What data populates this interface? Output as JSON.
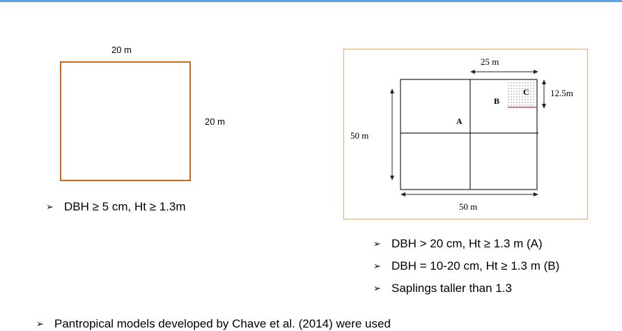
{
  "left_diagram": {
    "top_label": "20 m",
    "side_label": "20 m",
    "bullet": "DBH ≥ 5 cm, Ht ≥ 1.3m"
  },
  "right_diagram": {
    "top_label": "25 m",
    "right_label": "12.5m",
    "left_label": "50 m",
    "bottom_label": "50 m",
    "zone_a": "A",
    "zone_b": "B",
    "zone_c": "C"
  },
  "right_bullets": [
    "DBH > 20 cm, Ht ≥ 1.3 m (A)",
    "DBH = 10-20 cm, Ht ≥ 1.3 m (B)",
    "Saplings taller than 1.3"
  ],
  "footer_bullet": "Pantropical models developed by Chave et al. (2014) were used",
  "bullet_glyph": "➢",
  "colors": {
    "accent_rule": "#5ba3e6",
    "square_border": "#c06a22",
    "frame_border": "#f2a56b"
  }
}
